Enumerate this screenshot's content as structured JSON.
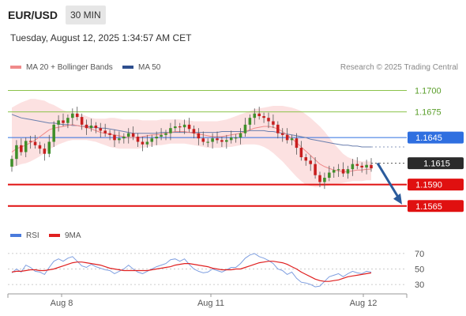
{
  "header": {
    "symbol": "EUR/USD",
    "timeframe": "30 MIN",
    "datetime": "Tuesday, August 12, 2025 1:34:57 AM CET"
  },
  "legend": {
    "ma20": {
      "label": "MA 20 + Bollinger Bands",
      "color": "#f08a8a"
    },
    "ma50": {
      "label": "MA 50",
      "color": "#2e4f8f"
    },
    "rsi": {
      "label": "RSI",
      "color": "#4a7bdc"
    },
    "ma9": {
      "label": "9MA",
      "color": "#e02020"
    }
  },
  "credit": "Research © 2025 Trading Central",
  "chart_data": {
    "type": "candlestick",
    "ylim": [
      1.1538,
      1.1718
    ],
    "x_ticks": [
      "Aug 8",
      "Aug 11",
      "Aug 12"
    ],
    "price_levels": [
      {
        "label": "1.1700",
        "value": 1.17,
        "kind": "resistance",
        "color": "#8bc34a"
      },
      {
        "label": "1.1675",
        "value": 1.1675,
        "kind": "resistance",
        "color": "#8bc34a"
      },
      {
        "label": "1.1645",
        "value": 1.1645,
        "kind": "pivot",
        "color": "#2f6fe0"
      },
      {
        "label": "1.1615",
        "value": 1.1615,
        "kind": "last",
        "color": "#2b2b2b"
      },
      {
        "label": "1.1590",
        "value": 1.159,
        "kind": "support",
        "color": "#e01010"
      },
      {
        "label": "1.1565",
        "value": 1.1565,
        "kind": "support",
        "color": "#e01010"
      }
    ],
    "forecast_arrow": {
      "from": 1.1615,
      "to": 1.1565,
      "color": "#2b5b9c"
    },
    "close": [
      1.162,
      1.1636,
      1.1628,
      1.1641,
      1.164,
      1.1636,
      1.1632,
      1.1626,
      1.164,
      1.166,
      1.1665,
      1.1662,
      1.1668,
      1.1673,
      1.1669,
      1.166,
      1.1656,
      1.1659,
      1.1656,
      1.1653,
      1.165,
      1.1648,
      1.1642,
      1.1644,
      1.1646,
      1.165,
      1.1646,
      1.164,
      1.1637,
      1.164,
      1.1644,
      1.1646,
      1.1648,
      1.165,
      1.1656,
      1.1658,
      1.1657,
      1.166,
      1.1655,
      1.165,
      1.1644,
      1.164,
      1.164,
      1.1644,
      1.1642,
      1.164,
      1.1642,
      1.1645,
      1.1645,
      1.165,
      1.166,
      1.1668,
      1.1673,
      1.167,
      1.1668,
      1.1664,
      1.166,
      1.165,
      1.1648,
      1.1642,
      1.1644,
      1.1633,
      1.1622,
      1.1618,
      1.1614,
      1.1601,
      1.1593,
      1.1598,
      1.1604,
      1.1607,
      1.1608,
      1.1603,
      1.1608,
      1.1614,
      1.1612,
      1.161,
      1.1613,
      1.1609
    ],
    "ma20": [
      1.1628,
      1.1632,
      1.1634,
      1.1636,
      1.1639,
      1.1642,
      1.1646,
      1.165,
      1.1654,
      1.1656,
      1.1657,
      1.1658,
      1.1659,
      1.166,
      1.1659,
      1.1658,
      1.1657,
      1.1655,
      1.1653,
      1.1651,
      1.165,
      1.1649,
      1.1648,
      1.1647,
      1.1646,
      1.1645,
      1.1645,
      1.1645,
      1.1646,
      1.1647,
      1.1648,
      1.1648,
      1.1649,
      1.165,
      1.1651,
      1.1652,
      1.1652,
      1.1652,
      1.1651,
      1.165,
      1.1649,
      1.1648,
      1.1647,
      1.1646,
      1.1646,
      1.1646,
      1.1647,
      1.1648,
      1.1649,
      1.165,
      1.1652,
      1.1654,
      1.1656,
      1.1657,
      1.1658,
      1.1658,
      1.1657,
      1.1655,
      1.1652,
      1.1648,
      1.1644,
      1.1639,
      1.1634,
      1.1629,
      1.1624,
      1.1619,
      1.1614,
      1.1611,
      1.1609,
      1.1607,
      1.1606,
      1.1605,
      1.1605,
      1.1606,
      1.1607,
      1.1607,
      1.1608,
      1.1608
    ],
    "bb_upper": [
      1.168,
      1.1683,
      1.1686,
      1.1688,
      1.169,
      1.169,
      1.1689,
      1.1688,
      1.1685,
      1.1683,
      1.168,
      1.1677,
      1.1675,
      1.1674,
      1.1673,
      1.1672,
      1.167,
      1.1668,
      1.1667,
      1.1667,
      1.1667,
      1.1668,
      1.1668,
      1.1667,
      1.1666,
      1.1666,
      1.1666,
      1.1666,
      1.1665,
      1.1665,
      1.1665,
      1.1665,
      1.1666,
      1.1666,
      1.1666,
      1.1666,
      1.1666,
      1.1665,
      1.1665,
      1.1664,
      1.1664,
      1.1664,
      1.1664,
      1.1664,
      1.1664,
      1.1665,
      1.1666,
      1.1668,
      1.167,
      1.1672,
      1.1674,
      1.1676,
      1.1678,
      1.1679,
      1.168,
      1.1681,
      1.1682,
      1.1682,
      1.1682,
      1.1681,
      1.168,
      1.1678,
      1.1676,
      1.1672,
      1.1668,
      1.1663,
      1.1658,
      1.1652,
      1.1645,
      1.1638,
      1.1632,
      1.1626,
      1.1622,
      1.162,
      1.1618,
      1.1617,
      1.1617,
      1.1617
    ],
    "bb_lower": [
      1.161,
      1.1612,
      1.1614,
      1.1615,
      1.1617,
      1.162,
      1.1623,
      1.1627,
      1.1631,
      1.1634,
      1.1637,
      1.1639,
      1.1641,
      1.1642,
      1.1642,
      1.1642,
      1.1642,
      1.1641,
      1.164,
      1.1638,
      1.1636,
      1.1634,
      1.1633,
      1.1632,
      1.1632,
      1.1632,
      1.1632,
      1.1632,
      1.1633,
      1.1634,
      1.1635,
      1.1636,
      1.1636,
      1.1637,
      1.1638,
      1.1638,
      1.1638,
      1.1638,
      1.1637,
      1.1636,
      1.1635,
      1.1634,
      1.1633,
      1.1633,
      1.1633,
      1.1633,
      1.1634,
      1.1634,
      1.1635,
      1.1636,
      1.1637,
      1.1637,
      1.1637,
      1.1636,
      1.1634,
      1.1631,
      1.1627,
      1.1622,
      1.1617,
      1.1611,
      1.1605,
      1.1599,
      1.1594,
      1.159,
      1.1588,
      1.1587,
      1.1587,
      1.1588,
      1.1589,
      1.159,
      1.1591,
      1.1592,
      1.1593,
      1.1594,
      1.1594,
      1.1594,
      1.1595,
      1.1595
    ],
    "ma50": [
      1.1672,
      1.167,
      1.1668,
      1.1667,
      1.1666,
      1.1665,
      1.1664,
      1.1663,
      1.1662,
      1.1662,
      1.1661,
      1.166,
      1.166,
      1.1659,
      1.1659,
      1.1658,
      1.1658,
      1.1657,
      1.1657,
      1.1656,
      1.1656,
      1.1655,
      1.1654,
      1.1653,
      1.1652,
      1.1651,
      1.165,
      1.165,
      1.165,
      1.165,
      1.165,
      1.165,
      1.1651,
      1.1651,
      1.1651,
      1.1651,
      1.1651,
      1.1651,
      1.1651,
      1.1651,
      1.1651,
      1.1651,
      1.1651,
      1.1651,
      1.1651,
      1.1652,
      1.1652,
      1.1652,
      1.1652,
      1.1652,
      1.1652,
      1.1653,
      1.1653,
      1.1653,
      1.1653,
      1.1652,
      1.1652,
      1.1651,
      1.165,
      1.1649,
      1.1648,
      1.1647,
      1.1646,
      1.1645,
      1.1643,
      1.1642,
      1.1641,
      1.164,
      1.1639,
      1.1638,
      1.1637,
      1.1636,
      1.1636,
      1.1635,
      1.1635,
      1.1634,
      1.1634,
      1.1634
    ],
    "rsi_panel": {
      "ylim": [
        22,
        78
      ],
      "levels": [
        70,
        50,
        30
      ],
      "rsi": [
        45,
        50,
        46,
        55,
        52,
        47,
        46,
        43,
        52,
        60,
        63,
        60,
        64,
        66,
        60,
        54,
        52,
        56,
        53,
        51,
        49,
        48,
        44,
        47,
        50,
        55,
        50,
        46,
        44,
        47,
        50,
        53,
        55,
        57,
        62,
        63,
        60,
        63,
        56,
        50,
        47,
        45,
        46,
        50,
        48,
        46,
        49,
        52,
        52,
        57,
        64,
        68,
        70,
        66,
        64,
        61,
        57,
        50,
        48,
        43,
        46,
        38,
        33,
        32,
        30,
        27,
        28,
        34,
        40,
        42,
        44,
        40,
        44,
        47,
        45,
        44,
        47,
        46
      ],
      "ma9": [
        46,
        47,
        47,
        48,
        49,
        49,
        48,
        48,
        49,
        50,
        52,
        54,
        56,
        58,
        59,
        59,
        58,
        57,
        56,
        55,
        53,
        51,
        50,
        49,
        48,
        48,
        48,
        48,
        48,
        48,
        49,
        50,
        51,
        52,
        53,
        55,
        56,
        57,
        57,
        56,
        55,
        54,
        53,
        51,
        50,
        49,
        49,
        49,
        50,
        50,
        52,
        54,
        56,
        58,
        59,
        60,
        60,
        59,
        58,
        56,
        53,
        50,
        46,
        43,
        40,
        37,
        35,
        34,
        34,
        35,
        36,
        38,
        40,
        41,
        42,
        43,
        44,
        45
      ]
    }
  }
}
